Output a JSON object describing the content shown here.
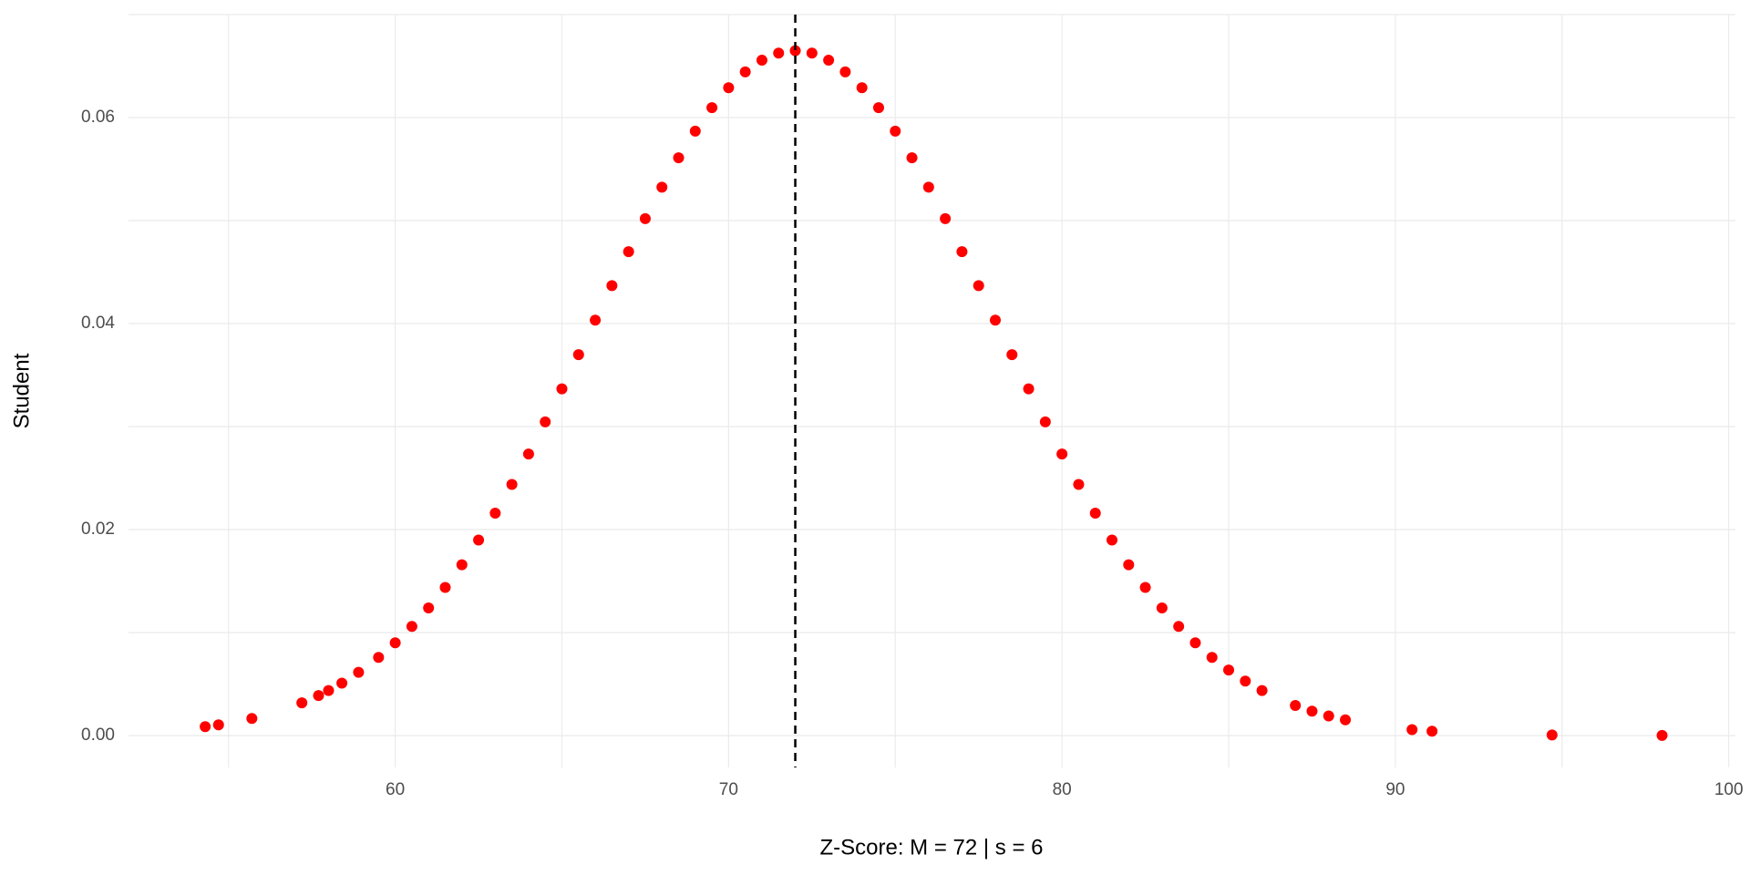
{
  "chart_data": {
    "type": "scatter",
    "xlabel": "Z-Score: M = 72 | s = 6",
    "ylabel": "Student",
    "color": "#ff0000",
    "vline": 72,
    "vline_color": "#000000",
    "xlim": [
      52,
      100.2
    ],
    "ylim": [
      -0.0031,
      0.07
    ],
    "xticks": [
      60,
      70,
      80,
      90,
      100
    ],
    "yticks": [
      {
        "value": 0,
        "label": "0.00"
      },
      {
        "value": 0.02,
        "label": "0.02"
      },
      {
        "value": 0.04,
        "label": "0.04"
      },
      {
        "value": 0.06,
        "label": "0.06"
      }
    ],
    "x_grid": [
      55,
      65,
      75,
      85,
      95
    ],
    "y_grid": [
      0.01,
      0.03,
      0.05,
      0.07
    ],
    "grid": true,
    "x": [
      54.3,
      54.7,
      55.7,
      57.2,
      57.7,
      58,
      58.4,
      58.9,
      59.5,
      60,
      60.5,
      61,
      61.5,
      62,
      62.5,
      63,
      63.5,
      64,
      64.5,
      65,
      65.5,
      66,
      66.5,
      67,
      67.5,
      68,
      68.5,
      69,
      69.5,
      70,
      70.5,
      71,
      71.5,
      72,
      72.5,
      73,
      73.5,
      74,
      74.5,
      75,
      75.5,
      76,
      76.5,
      77,
      77.5,
      78,
      78.5,
      79,
      79.5,
      80,
      80.5,
      81,
      81.5,
      82,
      82.5,
      83,
      83.5,
      84,
      84.5,
      85,
      85.5,
      86,
      87,
      87.5,
      88,
      88.5,
      90.5,
      91.1,
      94.7,
      98
    ],
    "y": [
      0.00086,
      0.00104,
      0.00166,
      0.00317,
      0.00388,
      0.00437,
      0.00509,
      0.00614,
      0.00759,
      0.009,
      0.01059,
      0.01239,
      0.01438,
      0.01658,
      0.01898,
      0.02159,
      0.02438,
      0.02733,
      0.03045,
      0.03366,
      0.03698,
      0.04033,
      0.04368,
      0.04698,
      0.05019,
      0.05324,
      0.05609,
      0.05868,
      0.06096,
      0.0629,
      0.06444,
      0.06557,
      0.06626,
      0.06649,
      0.06626,
      0.06557,
      0.06444,
      0.0629,
      0.06096,
      0.05868,
      0.05609,
      0.05324,
      0.05019,
      0.04698,
      0.04368,
      0.04033,
      0.03698,
      0.03366,
      0.03045,
      0.02733,
      0.02438,
      0.02159,
      0.01898,
      0.01658,
      0.01438,
      0.01239,
      0.01059,
      0.009,
      0.00759,
      0.00636,
      0.00529,
      0.00437,
      0.00292,
      0.00236,
      0.0019,
      0.00152,
      0.00057,
      0.00042,
      5e-05,
      1e-05
    ]
  }
}
